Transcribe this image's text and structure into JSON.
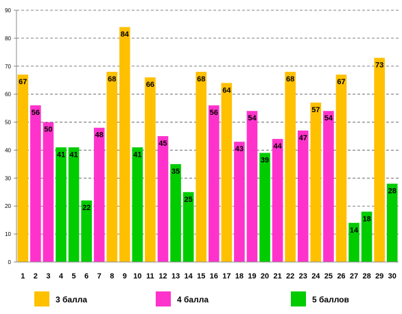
{
  "chart_data": {
    "type": "bar",
    "title": "",
    "xlabel": "",
    "ylabel": "",
    "ylim": [
      0,
      90
    ],
    "yticks": [
      0,
      10,
      20,
      30,
      40,
      50,
      60,
      70,
      80,
      90
    ],
    "grid": true,
    "legend_position": "bottom",
    "categories": [
      "1",
      "2",
      "3",
      "4",
      "5",
      "6",
      "7",
      "8",
      "9",
      "10",
      "11",
      "12",
      "13",
      "14",
      "15",
      "16",
      "17",
      "18",
      "19",
      "20",
      "21",
      "22",
      "23",
      "24",
      "25",
      "26",
      "27",
      "28",
      "29",
      "30"
    ],
    "values": [
      67,
      56,
      50,
      41,
      41,
      22,
      48,
      68,
      84,
      41,
      66,
      45,
      35,
      25,
      68,
      56,
      64,
      43,
      54,
      39,
      44,
      68,
      47,
      57,
      54,
      67,
      14,
      18,
      73,
      28
    ],
    "groups": [
      "3",
      "4",
      "4",
      "5",
      "5",
      "5",
      "4",
      "3",
      "3",
      "5",
      "3",
      "4",
      "5",
      "5",
      "3",
      "4",
      "3",
      "4",
      "4",
      "5",
      "4",
      "3",
      "4",
      "3",
      "4",
      "3",
      "5",
      "5",
      "3",
      "5"
    ],
    "legend": [
      {
        "key": "3",
        "label": "3 балла",
        "color": "#FFC000"
      },
      {
        "key": "4",
        "label": "4 балла",
        "color": "#FF33CC"
      },
      {
        "key": "5",
        "label": "5 баллов",
        "color": "#00CC00"
      }
    ]
  }
}
